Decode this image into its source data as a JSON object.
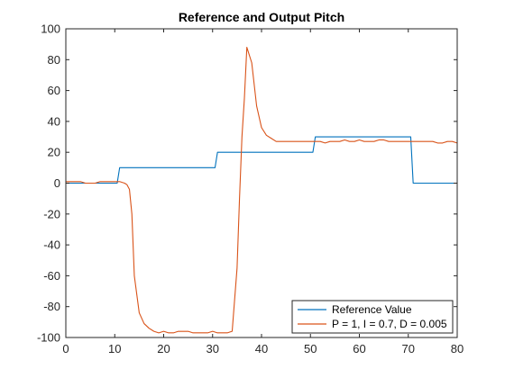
{
  "chart_data": {
    "type": "line",
    "title": "Reference and Output Pitch",
    "xlabel": "",
    "ylabel": "",
    "xlim": [
      0,
      80
    ],
    "ylim": [
      -100,
      100
    ],
    "xticks": [
      0,
      10,
      20,
      30,
      40,
      50,
      60,
      70,
      80
    ],
    "yticks": [
      -100,
      -80,
      -60,
      -40,
      -20,
      0,
      20,
      40,
      60,
      80,
      100
    ],
    "grid": false,
    "legend_position": "bottom-right",
    "series": [
      {
        "name": "Reference Value",
        "color": "#0072BD",
        "x": [
          0,
          10.5,
          11,
          30.5,
          31,
          50.5,
          51,
          70.5,
          71,
          80
        ],
        "y": [
          0,
          0,
          10,
          10,
          20,
          20,
          30,
          30,
          0,
          0
        ]
      },
      {
        "name": "P = 1, I = 0.7, D = 0.005",
        "color": "#D95319",
        "x": [
          0,
          2,
          3,
          4,
          5,
          6,
          7,
          8,
          9,
          10,
          11,
          12,
          12.5,
          13,
          13.5,
          14,
          15,
          16,
          17,
          18,
          19,
          20,
          21,
          22,
          23,
          24,
          25,
          26,
          27,
          28,
          29,
          30,
          31,
          32,
          33,
          34,
          35,
          35.5,
          36,
          36.5,
          37,
          38,
          39,
          40,
          41,
          42,
          43,
          44,
          45,
          46,
          47,
          48,
          49,
          50,
          51,
          52,
          53,
          54,
          55,
          56,
          57,
          58,
          59,
          60,
          61,
          62,
          63,
          64,
          65,
          66,
          67,
          68,
          69,
          70,
          71,
          72,
          73,
          74,
          75,
          76,
          77,
          78,
          79,
          80
        ],
        "y": [
          1,
          1,
          1,
          0,
          0,
          0,
          1,
          1,
          1,
          1,
          1,
          0,
          -1,
          -4,
          -20,
          -60,
          -84,
          -91,
          -94,
          -96,
          -97,
          -96,
          -97,
          -97,
          -96,
          -96,
          -96,
          -97,
          -97,
          -97,
          -97,
          -96,
          -97,
          -97,
          -97,
          -96,
          -55,
          -10,
          30,
          55,
          88,
          78,
          50,
          36,
          31,
          29,
          27,
          27,
          27,
          27,
          27,
          27,
          27,
          27,
          27,
          27,
          26,
          27,
          27,
          27,
          28,
          27,
          27,
          28,
          27,
          27,
          27,
          28,
          28,
          27,
          27,
          27,
          27,
          27,
          27,
          27,
          27,
          27,
          27,
          26,
          26,
          27,
          27,
          26
        ]
      }
    ]
  }
}
